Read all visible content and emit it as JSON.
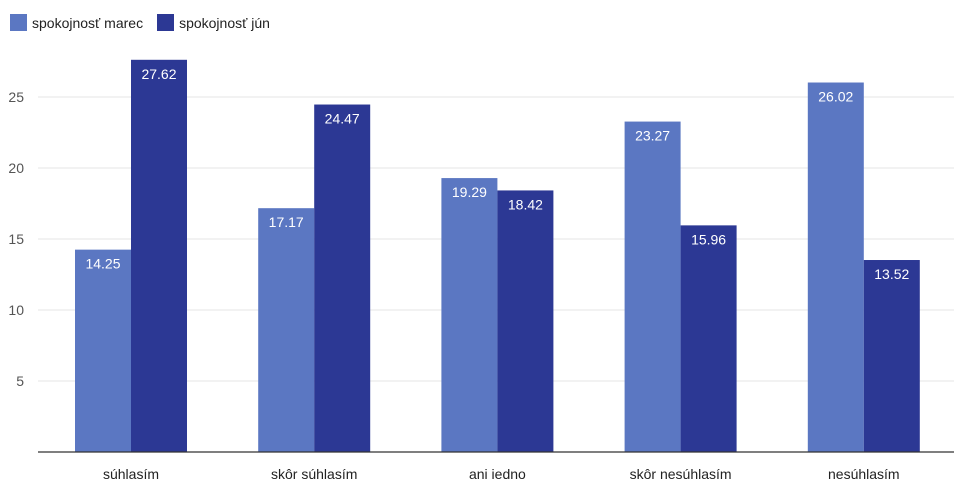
{
  "colors": {
    "series_1": "#5b77c2",
    "series_2": "#2c3894",
    "grid": "#e6e6e6",
    "axis": "#333333",
    "tick_text": "#555555",
    "label_text": "#222222",
    "value_text": "#ffffff"
  },
  "chart_data": {
    "type": "bar",
    "categories": [
      "súhlasím",
      "skôr súhlasím",
      "ani iedno",
      "skôr nesúhlasím",
      "nesúhlasím"
    ],
    "series": [
      {
        "name": "spokojnosť marec",
        "values": [
          14.25,
          17.17,
          19.29,
          23.27,
          26.02
        ]
      },
      {
        "name": "spokojnosť jún",
        "values": [
          27.62,
          24.47,
          18.42,
          15.96,
          13.52
        ]
      }
    ],
    "ylim": [
      0,
      30
    ],
    "yticks": [
      5,
      10,
      15,
      20,
      25
    ],
    "grid": true,
    "legend_position": "top-left",
    "data_labels": true,
    "title": "",
    "xlabel": "",
    "ylabel": ""
  }
}
